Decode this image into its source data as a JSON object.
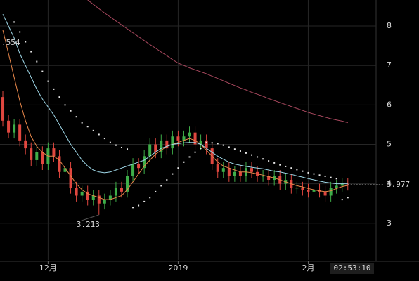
{
  "chart_data": {
    "type": "candlestick",
    "xlim": [
      -0.5,
      66
    ],
    "ylim": [
      2.07,
      8.66
    ],
    "yticks": [
      3,
      4,
      5,
      6,
      7,
      8
    ],
    "xticks": [
      {
        "value": 8,
        "label": "12月"
      },
      {
        "value": 31,
        "label": "2019"
      },
      {
        "value": 54,
        "label": "2月"
      }
    ],
    "grid": true,
    "up_color": "#3fae49",
    "down_color": "#e0473f",
    "open": [
      6.2,
      5.6,
      5.3,
      5.5,
      5.1,
      4.9,
      4.6,
      4.8,
      4.5,
      4.9,
      4.7,
      4.3,
      4.4,
      3.9,
      3.7,
      3.8,
      3.6,
      3.7,
      3.5,
      3.6,
      3.7,
      3.9,
      3.8,
      4.2,
      4.5,
      4.4,
      4.7,
      5.0,
      4.8,
      5.1,
      4.9,
      5.2,
      5.1,
      5.2,
      5.3,
      5.0,
      5.1,
      4.9,
      4.5,
      4.3,
      4.4,
      4.2,
      4.3,
      4.2,
      4.4,
      4.3,
      4.2,
      4.2,
      4.1,
      4.2,
      4.0,
      4.1,
      3.9,
      3.9,
      3.85,
      3.8,
      3.85,
      3.8,
      3.7,
      3.9,
      3.95,
      4.0
    ],
    "high": [
      6.35,
      5.75,
      5.65,
      5.65,
      5.25,
      5.05,
      4.95,
      4.95,
      5.05,
      5.05,
      4.85,
      4.55,
      4.55,
      4.05,
      3.95,
      3.95,
      3.85,
      3.85,
      3.75,
      3.85,
      4.05,
      4.05,
      4.35,
      4.65,
      4.65,
      4.85,
      5.15,
      5.15,
      5.25,
      5.25,
      5.35,
      5.35,
      5.35,
      5.45,
      5.45,
      5.25,
      5.25,
      5.05,
      4.65,
      4.55,
      4.55,
      4.45,
      4.45,
      4.55,
      4.55,
      4.45,
      4.35,
      4.35,
      4.35,
      4.35,
      4.25,
      4.25,
      4.05,
      4.05,
      4.0,
      4.0,
      4.0,
      3.95,
      4.05,
      4.1,
      4.15,
      4.15
    ],
    "low": [
      5.45,
      5.15,
      5.15,
      4.95,
      4.75,
      4.45,
      4.45,
      4.35,
      4.35,
      4.55,
      4.15,
      4.15,
      3.75,
      3.55,
      3.55,
      3.45,
      3.45,
      3.213,
      3.35,
      3.45,
      3.55,
      3.65,
      3.65,
      4.05,
      4.25,
      4.25,
      4.55,
      4.65,
      4.65,
      4.75,
      4.75,
      4.95,
      4.95,
      5.05,
      4.85,
      4.85,
      4.75,
      4.35,
      4.15,
      4.15,
      4.05,
      4.05,
      4.05,
      4.05,
      4.15,
      4.05,
      4.05,
      3.95,
      3.95,
      3.85,
      3.85,
      3.75,
      3.75,
      3.7,
      3.65,
      3.65,
      3.65,
      3.55,
      3.55,
      3.75,
      3.8,
      3.83
    ],
    "close": [
      5.6,
      5.3,
      5.5,
      5.1,
      4.9,
      4.6,
      4.8,
      4.5,
      4.9,
      4.7,
      4.3,
      4.4,
      3.9,
      3.7,
      3.8,
      3.6,
      3.7,
      3.5,
      3.6,
      3.7,
      3.9,
      3.8,
      4.2,
      4.5,
      4.4,
      4.7,
      5.0,
      4.8,
      5.1,
      4.9,
      5.2,
      5.1,
      5.2,
      5.3,
      5.0,
      5.1,
      4.9,
      4.5,
      4.3,
      4.4,
      4.2,
      4.3,
      4.2,
      4.4,
      4.3,
      4.2,
      4.2,
      4.1,
      4.2,
      4.0,
      4.1,
      3.9,
      3.9,
      3.85,
      3.8,
      3.85,
      3.8,
      3.7,
      3.9,
      3.95,
      4.0,
      3.977
    ],
    "series": [
      {
        "color": "#e8874a",
        "values": [
          7.9,
          7.3,
          6.7,
          6.1,
          5.6,
          5.2,
          4.95,
          4.8,
          4.7,
          4.7,
          4.6,
          4.4,
          4.2,
          4.0,
          3.85,
          3.75,
          3.7,
          3.65,
          3.6,
          3.6,
          3.65,
          3.7,
          3.85,
          4.05,
          4.25,
          4.45,
          4.6,
          4.75,
          4.85,
          4.95,
          5.0,
          5.05,
          5.1,
          5.15,
          5.1,
          5.0,
          4.85,
          4.7,
          4.55,
          4.45,
          4.4,
          4.35,
          4.3,
          4.3,
          4.28,
          4.25,
          4.22,
          4.18,
          4.15,
          4.1,
          4.05,
          4.0,
          3.95,
          3.92,
          3.88,
          3.85,
          3.82,
          3.8,
          3.82,
          3.88,
          3.93,
          3.96
        ]
      },
      {
        "color": "#9fd8e8",
        "values": [
          8.3,
          8.0,
          7.7,
          7.3,
          7.0,
          6.7,
          6.4,
          6.15,
          5.95,
          5.75,
          5.5,
          5.25,
          5.0,
          4.8,
          4.6,
          4.45,
          4.35,
          4.3,
          4.28,
          4.3,
          4.35,
          4.4,
          4.45,
          4.5,
          4.55,
          4.6,
          4.7,
          4.8,
          4.9,
          4.95,
          5.0,
          5.02,
          5.04,
          5.05,
          5.05,
          5.0,
          4.9,
          4.8,
          4.7,
          4.62,
          4.55,
          4.5,
          4.47,
          4.44,
          4.42,
          4.4,
          4.38,
          4.35,
          4.32,
          4.3,
          4.27,
          4.24,
          4.2,
          4.17,
          4.13,
          4.1,
          4.07,
          4.04,
          4.02,
          4.0,
          4.0,
          4.0
        ]
      },
      {
        "color": "#a8485e",
        "values": [
          null,
          null,
          null,
          null,
          null,
          null,
          null,
          null,
          null,
          null,
          null,
          null,
          null,
          null,
          null,
          8.66,
          8.55,
          8.44,
          8.33,
          8.23,
          8.13,
          8.03,
          7.93,
          7.83,
          7.73,
          7.63,
          7.53,
          7.44,
          7.34,
          7.25,
          7.15,
          7.06,
          7.0,
          6.94,
          6.89,
          6.84,
          6.79,
          6.73,
          6.67,
          6.61,
          6.55,
          6.49,
          6.43,
          6.38,
          6.32,
          6.27,
          6.22,
          6.16,
          6.11,
          6.06,
          6.01,
          5.96,
          5.91,
          5.86,
          5.81,
          5.77,
          5.73,
          5.69,
          5.65,
          5.62,
          5.59,
          5.55
        ]
      }
    ],
    "sar": {
      "color": "#e6e6e6",
      "values": [
        null,
        null,
        8.1,
        7.85,
        7.6,
        7.35,
        7.1,
        6.85,
        6.6,
        6.4,
        6.2,
        6.0,
        5.85,
        5.7,
        5.55,
        5.45,
        5.35,
        5.25,
        5.15,
        5.05,
        4.98,
        4.92,
        4.88,
        3.4,
        3.45,
        3.55,
        3.65,
        3.8,
        3.95,
        4.1,
        4.25,
        4.4,
        4.55,
        4.68,
        4.8,
        4.9,
        5.05,
        5.04,
        5.02,
        4.98,
        4.93,
        4.88,
        4.83,
        4.78,
        4.73,
        4.68,
        4.63,
        4.58,
        4.53,
        4.48,
        4.44,
        4.4,
        4.36,
        4.32,
        4.28,
        4.25,
        4.22,
        4.19,
        4.16,
        4.13,
        3.6,
        3.65
      ]
    },
    "annotation": ".554",
    "last_price": 3.977,
    "time_label": "02:53:10"
  }
}
